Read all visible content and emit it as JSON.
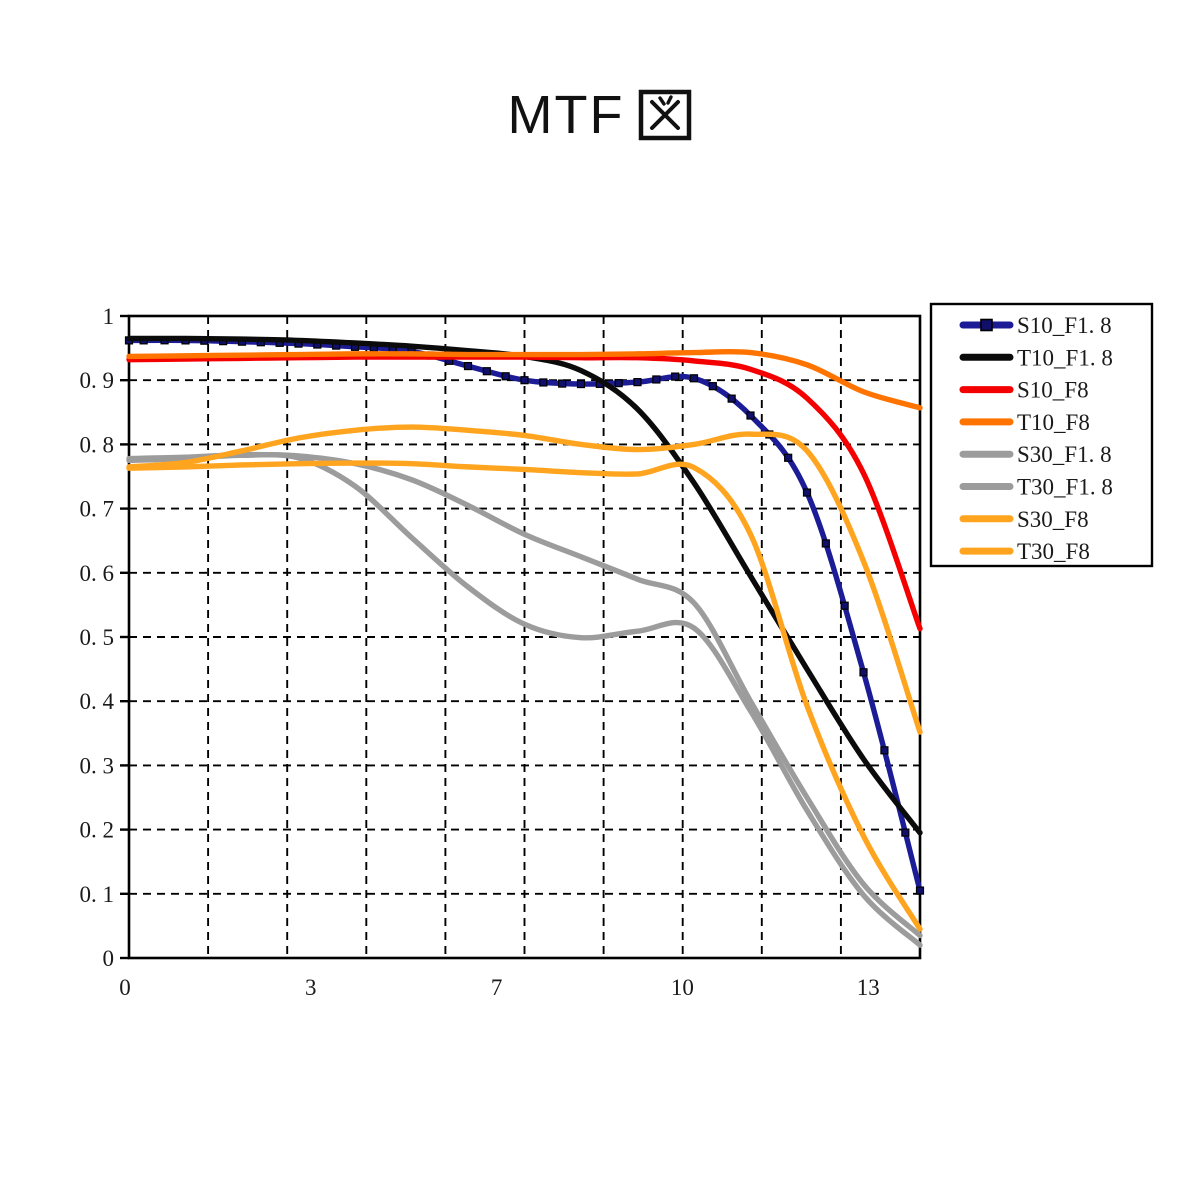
{
  "title": {
    "full": "MTF 図",
    "latin": "MTF"
  },
  "chart_data": {
    "type": "line",
    "title": "MTF 図",
    "xlabel": "",
    "ylabel": "",
    "ylim": [
      0,
      1
    ],
    "grid": "dashed",
    "legend_position": "right-box",
    "x_tick_labels": [
      "0",
      "3",
      "7",
      "10",
      "13"
    ],
    "y_tick_labels": [
      "1",
      "0. 9",
      "0. 8",
      "0. 7",
      "0. 6",
      "0. 5",
      "0. 4",
      "0. 3",
      "0. 2",
      "0. 1",
      "0"
    ],
    "x_index": [
      0,
      1,
      2,
      3,
      4,
      5,
      6,
      7,
      8,
      9,
      10,
      11,
      12,
      13,
      14
    ],
    "series": [
      {
        "name": "S10_F1. 8",
        "color": "#1C1C96",
        "marker": "square",
        "marker_color": "#10106A",
        "values": [
          0.962,
          0.962,
          0.96,
          0.957,
          0.952,
          0.945,
          0.922,
          0.9,
          0.894,
          0.897,
          0.903,
          0.845,
          0.725,
          0.445,
          0.105
        ]
      },
      {
        "name": "T10_F1. 8",
        "color": "#0B0B0B",
        "marker": "none",
        "values": [
          0.965,
          0.965,
          0.964,
          0.962,
          0.958,
          0.953,
          0.946,
          0.937,
          0.915,
          0.855,
          0.74,
          0.595,
          0.45,
          0.31,
          0.195
        ]
      },
      {
        "name": "S10_F8",
        "color": "#F40000",
        "marker": "none",
        "values": [
          0.932,
          0.933,
          0.934,
          0.935,
          0.936,
          0.936,
          0.936,
          0.936,
          0.935,
          0.935,
          0.93,
          0.917,
          0.872,
          0.755,
          0.513
        ]
      },
      {
        "name": "T10_F8",
        "color": "#FF7300",
        "marker": "none",
        "values": [
          0.937,
          0.938,
          0.939,
          0.94,
          0.941,
          0.941,
          0.94,
          0.94,
          0.94,
          0.941,
          0.943,
          0.943,
          0.924,
          0.882,
          0.857
        ]
      },
      {
        "name": "S30_F1. 8",
        "color": "#9C9C9C",
        "marker": "none",
        "values": [
          0.778,
          0.78,
          0.784,
          0.782,
          0.77,
          0.745,
          0.705,
          0.66,
          0.625,
          0.59,
          0.553,
          0.4,
          0.25,
          0.115,
          0.035
        ]
      },
      {
        "name": "T30_F1. 8",
        "color": "#9C9C9C",
        "marker": "none",
        "values": [
          0.775,
          0.778,
          0.783,
          0.779,
          0.735,
          0.655,
          0.578,
          0.52,
          0.499,
          0.509,
          0.514,
          0.385,
          0.23,
          0.098,
          0.02
        ]
      },
      {
        "name": "S30_F8",
        "color": "#FFA41E",
        "marker": "none",
        "values": [
          0.765,
          0.772,
          0.79,
          0.81,
          0.822,
          0.827,
          0.822,
          0.814,
          0.8,
          0.792,
          0.8,
          0.816,
          0.79,
          0.618,
          0.352
        ]
      },
      {
        "name": "T30_F8",
        "color": "#FFA41E",
        "marker": "none",
        "values": [
          0.763,
          0.765,
          0.768,
          0.77,
          0.771,
          0.77,
          0.765,
          0.761,
          0.756,
          0.754,
          0.764,
          0.66,
          0.393,
          0.19,
          0.045
        ]
      }
    ]
  }
}
